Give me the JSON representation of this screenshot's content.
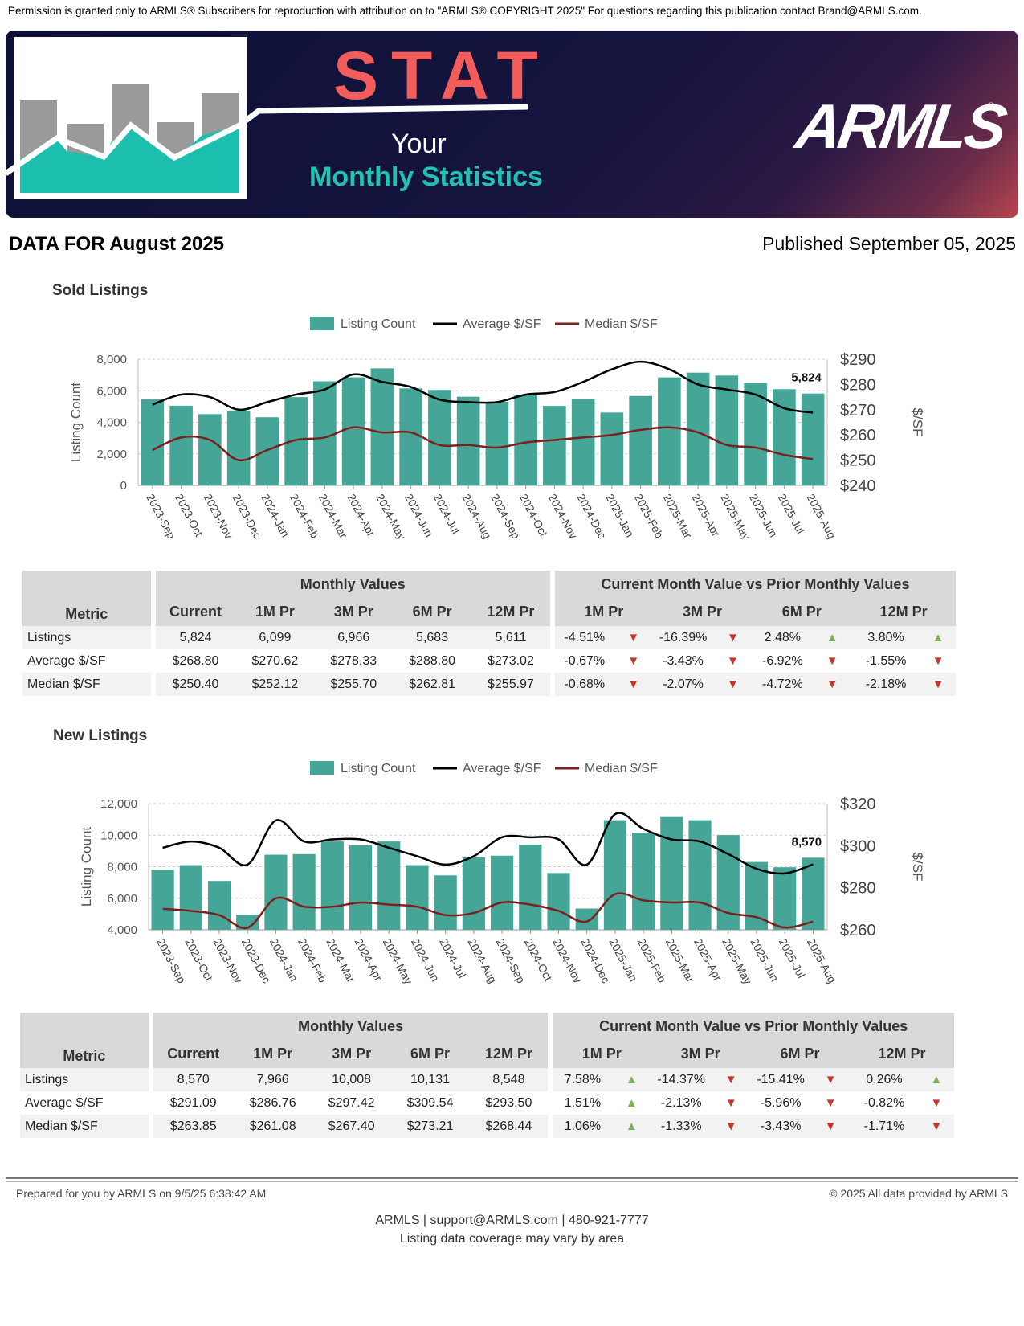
{
  "permission_text": "Permission is granted only to ARMLS® Subscribers for reproduction with attribution on to \"ARMLS® COPYRIGHT 2025\" For questions regarding this publication contact Brand@ARMLS.com.",
  "banner": {
    "stat": "STAT",
    "your": "Your",
    "monthly_statistics": "Monthly Statistics",
    "logo": "ARMLS",
    "logo_reg": "®",
    "colors": {
      "accent_red": "#f25d5b",
      "accent_teal": "#1fc4b0",
      "navy": "#14143e"
    }
  },
  "data_for": "DATA FOR August 2025",
  "published": "Published September 05, 2025",
  "sections": [
    {
      "title": "Sold Listings",
      "legend": {
        "count": "Listing Count",
        "avg": "Average $/SF",
        "median": "Median $/SF"
      },
      "y_left_label": "Listing Count",
      "y_right_label": "$/SF",
      "callout": "5,824",
      "table": {
        "group_monthly": "Monthly Values",
        "group_compare": "Current Month Value vs Prior Monthly Values",
        "headers": [
          "Metric",
          "Current",
          "1M Pr",
          "3M Pr",
          "6M Pr",
          "12M Pr"
        ],
        "compare_headers": [
          "1M Pr",
          "3M Pr",
          "6M Pr",
          "12M Pr"
        ],
        "rows": [
          {
            "metric": "Listings",
            "current": "5,824",
            "m1": "6,099",
            "m3": "6,966",
            "m6": "5,683",
            "m12": "5,611",
            "c1": "-4.51%",
            "a1": "▼",
            "c3": "-16.39%",
            "a3": "▼",
            "c6": "2.48%",
            "a6": "▲",
            "c12": "3.80%",
            "a12": "▲"
          },
          {
            "metric": "Average $/SF",
            "current": "$268.80",
            "m1": "$270.62",
            "m3": "$278.33",
            "m6": "$288.80",
            "m12": "$273.02",
            "c1": "-0.67%",
            "a1": "▼",
            "c3": "-3.43%",
            "a3": "▼",
            "c6": "-6.92%",
            "a6": "▼",
            "c12": "-1.55%",
            "a12": "▼"
          },
          {
            "metric": "Median $/SF",
            "current": "$250.40",
            "m1": "$252.12",
            "m3": "$255.70",
            "m6": "$262.81",
            "m12": "$255.97",
            "c1": "-0.68%",
            "a1": "▼",
            "c3": "-2.07%",
            "a3": "▼",
            "c6": "-4.72%",
            "a6": "▼",
            "c12": "-2.18%",
            "a12": "▼"
          }
        ]
      }
    },
    {
      "title": "New Listings",
      "legend": {
        "count": "Listing Count",
        "avg": "Average $/SF",
        "median": "Median $/SF"
      },
      "y_left_label": "Listing Count",
      "y_right_label": "$/SF",
      "callout": "8,570",
      "table": {
        "group_monthly": "Monthly Values",
        "group_compare": "Current Month Value vs Prior Monthly Values",
        "headers": [
          "Metric",
          "Current",
          "1M Pr",
          "3M Pr",
          "6M Pr",
          "12M Pr"
        ],
        "compare_headers": [
          "1M Pr",
          "3M Pr",
          "6M Pr",
          "12M Pr"
        ],
        "rows": [
          {
            "metric": "Listings",
            "current": "8,570",
            "m1": "7,966",
            "m3": "10,008",
            "m6": "10,131",
            "m12": "8,548",
            "c1": "7.58%",
            "a1": "▲",
            "c3": "-14.37%",
            "a3": "▼",
            "c6": "-15.41%",
            "a6": "▼",
            "c12": "0.26%",
            "a12": "▲"
          },
          {
            "metric": "Average $/SF",
            "current": "$291.09",
            "m1": "$286.76",
            "m3": "$297.42",
            "m6": "$309.54",
            "m12": "$293.50",
            "c1": "1.51%",
            "a1": "▲",
            "c3": "-2.13%",
            "a3": "▼",
            "c6": "-5.96%",
            "a6": "▼",
            "c12": "-0.82%",
            "a12": "▼"
          },
          {
            "metric": "Median $/SF",
            "current": "$263.85",
            "m1": "$261.08",
            "m3": "$267.40",
            "m6": "$273.21",
            "m12": "$268.44",
            "c1": "1.06%",
            "a1": "▲",
            "c3": "-1.33%",
            "a3": "▼",
            "c6": "-3.43%",
            "a6": "▼",
            "c12": "-1.71%",
            "a12": "▼"
          }
        ]
      }
    }
  ],
  "chart_data": [
    {
      "type": "bar",
      "categories": [
        "2023-Sep",
        "2023-Oct",
        "2023-Nov",
        "2023-Dec",
        "2024-Jan",
        "2024-Feb",
        "2024-Mar",
        "2024-Apr",
        "2024-May",
        "2024-Jun",
        "2024-Jul",
        "2024-Aug",
        "2024-Sep",
        "2024-Oct",
        "2024-Nov",
        "2024-Dec",
        "2025-Jan",
        "2025-Feb",
        "2025-Mar",
        "2025-Apr",
        "2025-May",
        "2025-Jun",
        "2025-Jul",
        "2025-Aug"
      ],
      "ylabel": "Listing Count",
      "y2label": "$/SF",
      "ylim": [
        0,
        8000
      ],
      "yticks": [
        "0",
        "2,000",
        "4,000",
        "6,000",
        "8,000"
      ],
      "y2lim": [
        240,
        290
      ],
      "y2ticks": [
        "$240",
        "$250",
        "$260",
        "$270",
        "$280",
        "$290"
      ],
      "legend_position": "top-center",
      "series": [
        {
          "name": "Listing Count",
          "axis": "left",
          "type": "bar",
          "color": "#45a597",
          "values": [
            5450,
            5050,
            4520,
            4750,
            4320,
            5600,
            6600,
            6850,
            7420,
            6150,
            6050,
            5620,
            5300,
            5740,
            5040,
            5470,
            4620,
            5670,
            6850,
            7150,
            6966,
            6500,
            6099,
            5824
          ]
        },
        {
          "name": "Average $/SF",
          "axis": "right",
          "type": "line",
          "color": "#000000",
          "values": [
            272,
            276,
            275,
            270,
            273,
            276,
            278,
            284,
            281,
            279,
            274,
            273,
            273,
            276,
            277,
            281,
            286,
            289,
            286,
            280,
            278,
            276,
            270.6,
            268.8
          ]
        },
        {
          "name": "Median $/SF",
          "axis": "right",
          "type": "line",
          "color": "#7b1f1f",
          "values": [
            254,
            259,
            258,
            250,
            254,
            258,
            259,
            263,
            261,
            261,
            256,
            256,
            255,
            257,
            258,
            259,
            260,
            262,
            263,
            261,
            256,
            255,
            252.1,
            250.4
          ]
        }
      ]
    },
    {
      "type": "bar",
      "categories": [
        "2023-Sep",
        "2023-Oct",
        "2023-Nov",
        "2023-Dec",
        "2024-Jan",
        "2024-Feb",
        "2024-Mar",
        "2024-Apr",
        "2024-May",
        "2024-Jun",
        "2024-Jul",
        "2024-Aug",
        "2024-Sep",
        "2024-Oct",
        "2024-Nov",
        "2024-Dec",
        "2025-Jan",
        "2025-Feb",
        "2025-Mar",
        "2025-Apr",
        "2025-May",
        "2025-Jun",
        "2025-Jul",
        "2025-Aug"
      ],
      "ylabel": "Listing Count",
      "y2label": "$/SF",
      "ylim": [
        4000,
        12000
      ],
      "yticks": [
        "4,000",
        "6,000",
        "8,000",
        "10,000",
        "12,000"
      ],
      "y2lim": [
        260,
        320
      ],
      "y2ticks": [
        "$260",
        "$280",
        "$300",
        "$320"
      ],
      "legend_position": "top-center",
      "series": [
        {
          "name": "Listing Count",
          "axis": "left",
          "type": "bar",
          "color": "#45a597",
          "values": [
            7800,
            8100,
            7100,
            4950,
            8760,
            8800,
            9600,
            9350,
            9600,
            8100,
            7450,
            8600,
            8700,
            9400,
            7600,
            5350,
            10950,
            10150,
            11150,
            10950,
            10008,
            8300,
            7966,
            8570
          ]
        },
        {
          "name": "Average $/SF",
          "axis": "right",
          "type": "line",
          "color": "#000000",
          "values": [
            299,
            302,
            299,
            291,
            312,
            302,
            303,
            303,
            299,
            295,
            291,
            295,
            304,
            304,
            303,
            291,
            315,
            308,
            303,
            302,
            296,
            289,
            286.8,
            291.1
          ]
        },
        {
          "name": "Median $/SF",
          "axis": "right",
          "type": "line",
          "color": "#7b1f1f",
          "values": [
            270,
            269,
            267,
            261,
            275,
            271,
            271,
            273,
            272,
            271,
            267,
            268,
            273,
            272,
            269,
            264,
            277,
            274,
            273,
            273,
            268,
            266,
            261.1,
            263.9
          ]
        }
      ]
    }
  ],
  "footer": {
    "prepared": "Prepared for you by ARMLS on 9/5/25 6:38:42 AM",
    "copyright": "© 2025 All data provided by ARMLS",
    "contact": "ARMLS | support@ARMLS.com | 480-921-7777",
    "coverage": "Listing data coverage may vary by area"
  }
}
